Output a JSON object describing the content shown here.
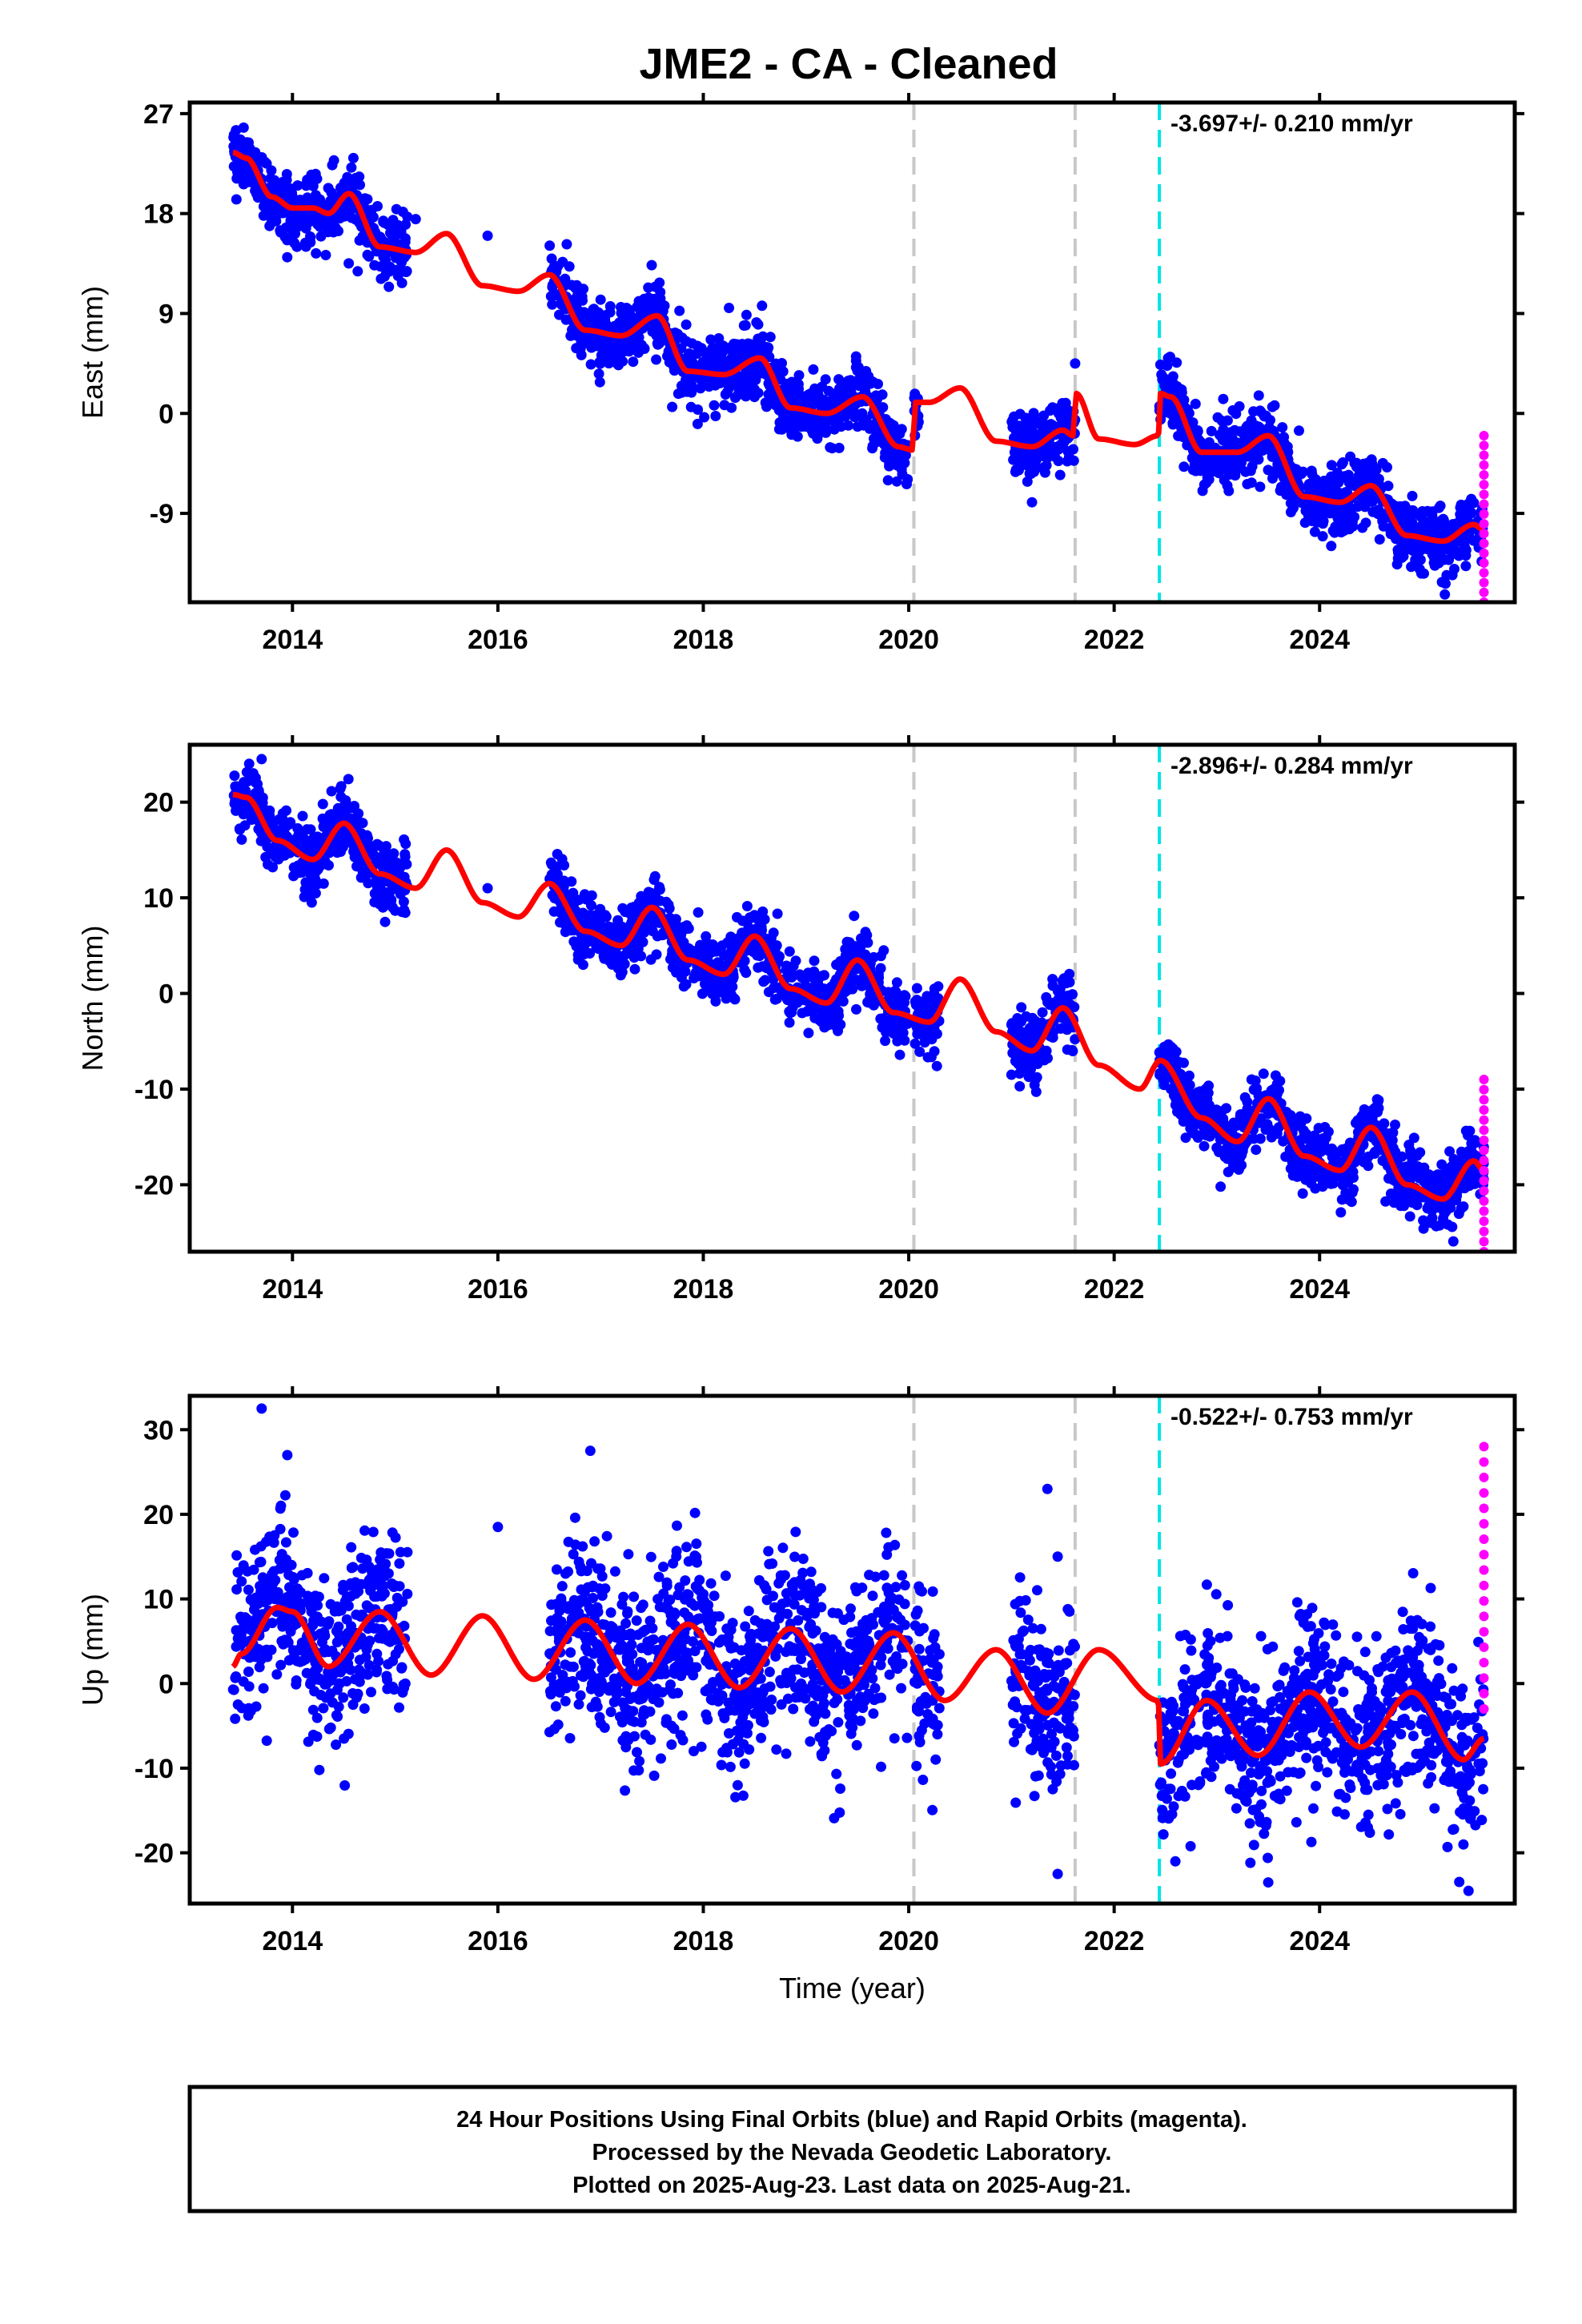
{
  "title": "JME2  - CA - Cleaned",
  "footer": {
    "lines": [
      "24 Hour Positions Using Final Orbits (blue) and Rapid Orbits (magenta).",
      "Processed by the Nevada Geodetic Laboratory.",
      "Plotted on 2025-Aug-23. Last data on 2025-Aug-21."
    ]
  },
  "colors": {
    "final_orbits": "#0000ff",
    "rapid_orbits": "#ff00ff",
    "model_fit": "#ff0000",
    "equipment_change": "#c8c8c8",
    "earthquake_offset": "#00e5e5"
  },
  "chart_data": [
    {
      "type": "scatter",
      "panel": "east",
      "ylabel": "East (mm)",
      "xlabel": "",
      "rate_label": "-3.697+/- 0.210 mm/yr",
      "x_ticks": [
        2014,
        2016,
        2018,
        2020,
        2022,
        2024
      ],
      "x_tick_labels": [
        "2014",
        "2016",
        "2018",
        "2020",
        "2022",
        "2024"
      ],
      "y_ticks": [
        27,
        18,
        9,
        0,
        -9
      ],
      "y_tick_labels": [
        "27",
        "18",
        "9",
        "0",
        "-9"
      ],
      "xlim": [
        2013.0,
        2025.9
      ],
      "ylim": [
        -17,
        28
      ],
      "gray_dashed_lines_x": [
        2020.05,
        2021.62
      ],
      "cyan_dashed_lines_x": [
        2022.44
      ],
      "rapid_points_x": 2025.6,
      "rapid_points_range": [
        -17,
        -2
      ],
      "data_segments": [
        [
          2013.42,
          2015.12
        ],
        [
          2016.5,
          2019.99
        ],
        [
          2020.05,
          2020.1
        ],
        [
          2021.0,
          2021.62
        ],
        [
          2022.44,
          2025.6
        ]
      ],
      "sparse_points": [
        [
          2015.2,
          17.5
        ],
        [
          2015.9,
          16.0
        ],
        [
          2018.25,
          9.5
        ],
        [
          2021.2,
          -8.0
        ],
        [
          2021.62,
          4.5
        ]
      ],
      "scatter_spread": 1.5,
      "fit_keys": [
        [
          2013.42,
          23.5
        ],
        [
          2013.55,
          23.0
        ],
        [
          2013.8,
          19.5
        ],
        [
          2014.0,
          18.5
        ],
        [
          2014.2,
          18.5
        ],
        [
          2014.35,
          18.0
        ],
        [
          2014.55,
          19.8
        ],
        [
          2014.85,
          15.0
        ],
        [
          2015.2,
          14.5
        ],
        [
          2015.5,
          16.2
        ],
        [
          2015.85,
          11.5
        ],
        [
          2016.2,
          11.0
        ],
        [
          2016.5,
          12.5
        ],
        [
          2016.85,
          7.5
        ],
        [
          2017.2,
          7.0
        ],
        [
          2017.55,
          8.8
        ],
        [
          2017.85,
          3.8
        ],
        [
          2018.2,
          3.5
        ],
        [
          2018.55,
          5.0
        ],
        [
          2018.85,
          0.5
        ],
        [
          2019.2,
          0.0
        ],
        [
          2019.55,
          1.5
        ],
        [
          2019.9,
          -3.0
        ],
        [
          2020.04,
          -3.3
        ],
        [
          2020.06,
          1.0
        ],
        [
          2020.2,
          1.0
        ],
        [
          2020.5,
          2.3
        ],
        [
          2020.85,
          -2.5
        ],
        [
          2021.2,
          -3.0
        ],
        [
          2021.5,
          -1.5
        ],
        [
          2021.6,
          -2.0
        ],
        [
          2021.63,
          1.8
        ],
        [
          2021.85,
          -2.3
        ],
        [
          2022.2,
          -2.8
        ],
        [
          2022.43,
          -2.0
        ],
        [
          2022.45,
          1.8
        ],
        [
          2022.55,
          1.5
        ],
        [
          2022.85,
          -3.5
        ],
        [
          2023.2,
          -3.5
        ],
        [
          2023.5,
          -2.0
        ],
        [
          2023.85,
          -7.5
        ],
        [
          2024.2,
          -8.0
        ],
        [
          2024.5,
          -6.5
        ],
        [
          2024.85,
          -11.0
        ],
        [
          2025.2,
          -11.5
        ],
        [
          2025.5,
          -10.0
        ],
        [
          2025.6,
          -10.5
        ]
      ]
    },
    {
      "type": "scatter",
      "panel": "north",
      "ylabel": "North (mm)",
      "xlabel": "",
      "rate_label": "-2.896+/- 0.284 mm/yr",
      "x_ticks": [
        2014,
        2016,
        2018,
        2020,
        2022,
        2024
      ],
      "x_tick_labels": [
        "2014",
        "2016",
        "2018",
        "2020",
        "2022",
        "2024"
      ],
      "y_ticks": [
        20,
        10,
        0,
        -10,
        -20
      ],
      "y_tick_labels": [
        "20",
        "10",
        "0",
        "-10",
        "-20"
      ],
      "xlim": [
        2013.0,
        2025.9
      ],
      "ylim": [
        -27,
        26
      ],
      "gray_dashed_lines_x": [
        2020.05,
        2021.62
      ],
      "cyan_dashed_lines_x": [
        2022.44
      ],
      "rapid_points_x": 2025.6,
      "rapid_points_range": [
        -27,
        -9
      ],
      "data_segments": [
        [
          2013.42,
          2015.12
        ],
        [
          2016.5,
          2019.99
        ],
        [
          2020.05,
          2020.3
        ],
        [
          2021.0,
          2021.62
        ],
        [
          2022.44,
          2025.6
        ]
      ],
      "sparse_points": [
        [
          2013.7,
          24.5
        ],
        [
          2015.9,
          11.0
        ],
        [
          2021.0,
          -8.5
        ],
        [
          2021.4,
          1.5
        ]
      ],
      "scatter_spread": 1.7,
      "fit_keys": [
        [
          2013.42,
          20.8
        ],
        [
          2013.55,
          20.5
        ],
        [
          2013.85,
          16.0
        ],
        [
          2014.2,
          14.0
        ],
        [
          2014.5,
          17.8
        ],
        [
          2014.85,
          12.5
        ],
        [
          2015.2,
          11.0
        ],
        [
          2015.5,
          15.0
        ],
        [
          2015.85,
          9.5
        ],
        [
          2016.2,
          8.0
        ],
        [
          2016.5,
          11.5
        ],
        [
          2016.85,
          6.5
        ],
        [
          2017.2,
          5.0
        ],
        [
          2017.5,
          9.0
        ],
        [
          2017.85,
          3.5
        ],
        [
          2018.2,
          2.0
        ],
        [
          2018.5,
          6.0
        ],
        [
          2018.85,
          0.5
        ],
        [
          2019.2,
          -1.0
        ],
        [
          2019.5,
          3.5
        ],
        [
          2019.85,
          -2.0
        ],
        [
          2020.2,
          -3.0
        ],
        [
          2020.5,
          1.5
        ],
        [
          2020.85,
          -4.0
        ],
        [
          2021.2,
          -6.0
        ],
        [
          2021.5,
          -1.5
        ],
        [
          2021.85,
          -7.5
        ],
        [
          2022.25,
          -10.0
        ],
        [
          2022.45,
          -7.0
        ],
        [
          2022.85,
          -13.0
        ],
        [
          2023.2,
          -15.5
        ],
        [
          2023.5,
          -11.0
        ],
        [
          2023.85,
          -17.0
        ],
        [
          2024.2,
          -18.5
        ],
        [
          2024.5,
          -14.0
        ],
        [
          2024.85,
          -20.0
        ],
        [
          2025.2,
          -21.5
        ],
        [
          2025.5,
          -17.5
        ],
        [
          2025.6,
          -18.5
        ]
      ]
    },
    {
      "type": "scatter",
      "panel": "up",
      "ylabel": "Up (mm)",
      "xlabel": "Time (year)",
      "rate_label": "-0.522+/- 0.753 mm/yr",
      "x_ticks": [
        2014,
        2016,
        2018,
        2020,
        2022,
        2024
      ],
      "x_tick_labels": [
        "2014",
        "2016",
        "2018",
        "2020",
        "2022",
        "2024"
      ],
      "y_ticks": [
        30,
        20,
        10,
        0,
        -10,
        -20
      ],
      "y_tick_labels": [
        "30",
        "20",
        "10",
        "0",
        "-10",
        "-20"
      ],
      "xlim": [
        2013.0,
        2025.9
      ],
      "ylim": [
        -26,
        34
      ],
      "gray_dashed_lines_x": [
        2020.05,
        2021.62
      ],
      "cyan_dashed_lines_x": [
        2022.44
      ],
      "rapid_points_x": 2025.6,
      "rapid_points_range": [
        -3,
        28
      ],
      "data_segments": [
        [
          2013.42,
          2015.12
        ],
        [
          2016.5,
          2019.99
        ],
        [
          2020.05,
          2020.3
        ],
        [
          2021.0,
          2021.62
        ],
        [
          2022.44,
          2025.6
        ]
      ],
      "sparse_points": [
        [
          2013.7,
          32.5
        ],
        [
          2013.95,
          27.0
        ],
        [
          2016.0,
          18.5
        ],
        [
          2016.9,
          27.5
        ],
        [
          2021.35,
          23.0
        ],
        [
          2021.45,
          15.0
        ],
        [
          2021.45,
          -22.5
        ],
        [
          2025.45,
          -24.5
        ],
        [
          2023.5,
          -23.5
        ]
      ],
      "scatter_spread": 5.0,
      "fit_keys": [
        [
          2013.42,
          2.0
        ],
        [
          2013.5,
          3.5
        ],
        [
          2013.85,
          9.0
        ],
        [
          2014.0,
          8.5
        ],
        [
          2014.35,
          2.0
        ],
        [
          2014.85,
          8.5
        ],
        [
          2015.35,
          1.0
        ],
        [
          2015.85,
          8.0
        ],
        [
          2016.35,
          0.5
        ],
        [
          2016.85,
          7.5
        ],
        [
          2017.35,
          0.0
        ],
        [
          2017.85,
          7.0
        ],
        [
          2018.35,
          -0.5
        ],
        [
          2018.85,
          6.5
        ],
        [
          2019.35,
          -1.0
        ],
        [
          2019.85,
          6.0
        ],
        [
          2020.35,
          -2.0
        ],
        [
          2020.85,
          4.0
        ],
        [
          2021.35,
          -3.5
        ],
        [
          2021.85,
          4.0
        ],
        [
          2022.43,
          -2.0
        ],
        [
          2022.45,
          -9.5
        ],
        [
          2022.9,
          -2.0
        ],
        [
          2023.4,
          -8.5
        ],
        [
          2023.9,
          -1.0
        ],
        [
          2024.4,
          -7.5
        ],
        [
          2024.9,
          -1.0
        ],
        [
          2025.4,
          -9.0
        ],
        [
          2025.6,
          -6.5
        ]
      ]
    }
  ]
}
